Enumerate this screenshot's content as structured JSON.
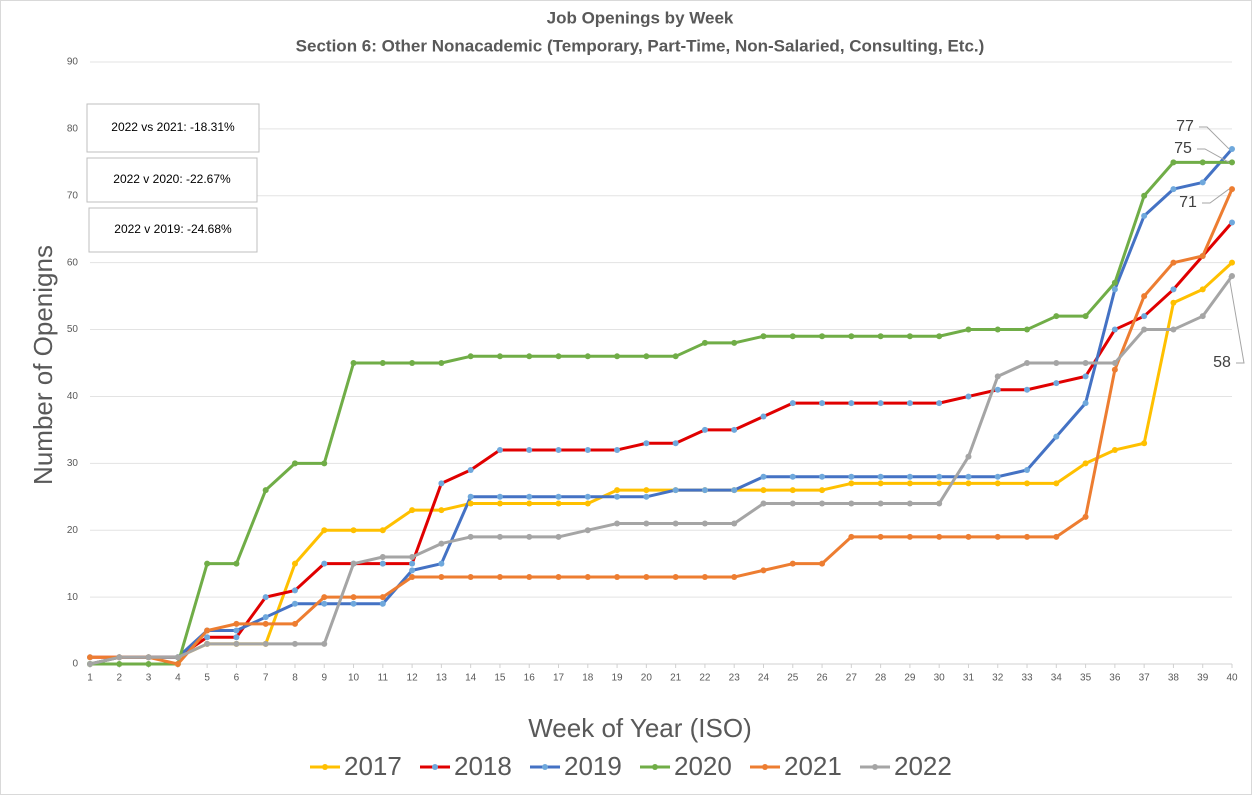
{
  "chart_data": {
    "type": "line",
    "title": "Job Openings by Week",
    "subtitle": "Section 6: Other Nonacademic (Temporary, Part-Time, Non-Salaried, Consulting, Etc.)",
    "x_label": "Week of Year (ISO)",
    "y_label": "Number of Openigns",
    "annotations": [
      "2022 vs 2021: -18.31%",
      "2022 v 2020: -22.67%",
      "2022 v 2019: -24.68%"
    ],
    "x": [
      1,
      2,
      3,
      4,
      5,
      6,
      7,
      8,
      9,
      10,
      11,
      12,
      13,
      14,
      15,
      16,
      17,
      18,
      19,
      20,
      21,
      22,
      23,
      24,
      25,
      26,
      27,
      28,
      29,
      30,
      31,
      32,
      33,
      34,
      35,
      36,
      37,
      38,
      39,
      40
    ],
    "xlim": [
      1,
      40
    ],
    "xticks": [
      1,
      2,
      3,
      4,
      5,
      6,
      7,
      8,
      9,
      10,
      11,
      12,
      13,
      14,
      15,
      16,
      17,
      18,
      19,
      20,
      21,
      22,
      23,
      24,
      25,
      26,
      27,
      28,
      29,
      30,
      31,
      32,
      33,
      34,
      35,
      36,
      37,
      38,
      39,
      40
    ],
    "ylim": [
      0,
      90
    ],
    "yticks": [
      0,
      10,
      20,
      30,
      40,
      50,
      60,
      70,
      80,
      90
    ],
    "grid": true,
    "legend": "bottom",
    "series": [
      {
        "name": "2017",
        "color": "#ffc000",
        "marker_color": "#ffc000",
        "values": [
          0,
          1,
          1,
          1,
          3,
          3,
          3,
          15,
          20,
          20,
          20,
          23,
          23,
          24,
          24,
          24,
          24,
          24,
          26,
          26,
          26,
          26,
          26,
          26,
          26,
          26,
          27,
          27,
          27,
          27,
          27,
          27,
          27,
          27,
          30,
          32,
          33,
          54,
          56,
          60
        ]
      },
      {
        "name": "2018",
        "color": "#e00000",
        "marker_color": "#6fa8dc",
        "values": [
          1,
          1,
          1,
          1,
          4,
          4,
          10,
          11,
          15,
          15,
          15,
          15,
          27,
          29,
          32,
          32,
          32,
          32,
          32,
          33,
          33,
          35,
          35,
          37,
          39,
          39,
          39,
          39,
          39,
          39,
          40,
          41,
          41,
          42,
          43,
          50,
          52,
          56,
          61,
          66
        ]
      },
      {
        "name": "2019",
        "color": "#4472c4",
        "marker_color": "#6fa8dc",
        "label_last": true,
        "values": [
          0,
          1,
          1,
          1,
          5,
          5,
          7,
          9,
          9,
          9,
          9,
          14,
          15,
          25,
          25,
          25,
          25,
          25,
          25,
          25,
          26,
          26,
          26,
          28,
          28,
          28,
          28,
          28,
          28,
          28,
          28,
          28,
          29,
          34,
          39,
          56,
          67,
          71,
          72,
          77
        ]
      },
      {
        "name": "2020",
        "color": "#70ad47",
        "marker_color": "#70ad47",
        "label_last": true,
        "values": [
          0,
          0,
          0,
          0,
          15,
          15,
          26,
          30,
          30,
          45,
          45,
          45,
          45,
          46,
          46,
          46,
          46,
          46,
          46,
          46,
          46,
          48,
          48,
          49,
          49,
          49,
          49,
          49,
          49,
          49,
          50,
          50,
          50,
          52,
          52,
          57,
          70,
          75,
          75,
          75
        ]
      },
      {
        "name": "2021",
        "color": "#ed7d31",
        "marker_color": "#ed7d31",
        "label_last": true,
        "values": [
          1,
          1,
          1,
          0,
          5,
          6,
          6,
          6,
          10,
          10,
          10,
          13,
          13,
          13,
          13,
          13,
          13,
          13,
          13,
          13,
          13,
          13,
          13,
          14,
          15,
          15,
          19,
          19,
          19,
          19,
          19,
          19,
          19,
          19,
          22,
          44,
          55,
          60,
          61,
          71
        ]
      },
      {
        "name": "2022",
        "color": "#a5a5a5",
        "marker_color": "#a5a5a5",
        "label_last": true,
        "values": [
          0,
          1,
          1,
          1,
          3,
          3,
          3,
          3,
          3,
          15,
          16,
          16,
          18,
          19,
          19,
          19,
          19,
          20,
          21,
          21,
          21,
          21,
          21,
          24,
          24,
          24,
          24,
          24,
          24,
          24,
          31,
          43,
          45,
          45,
          45,
          45,
          50,
          50,
          52,
          58
        ]
      }
    ]
  }
}
